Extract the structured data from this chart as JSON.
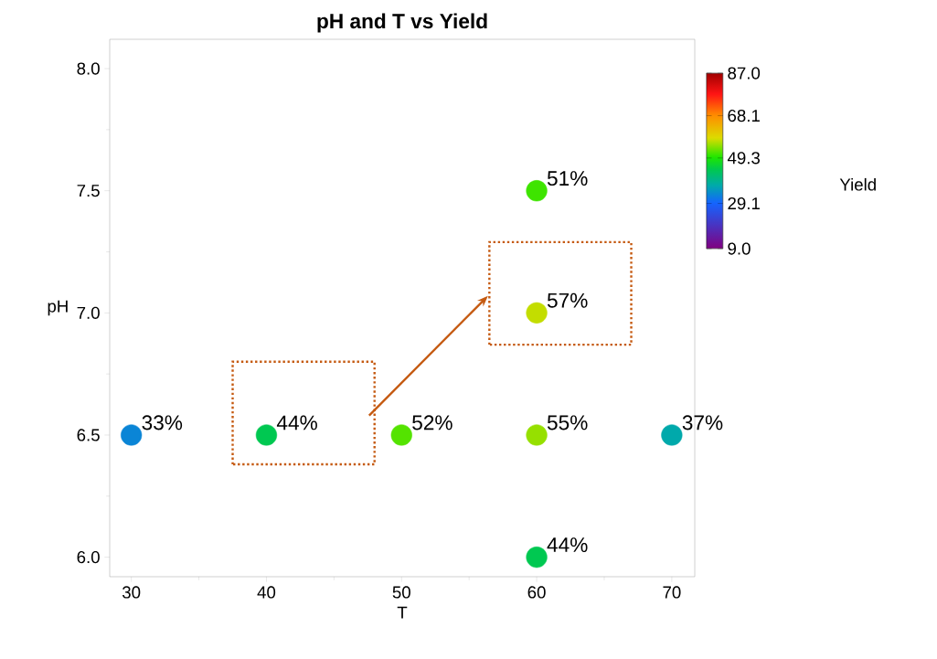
{
  "chart_data": {
    "type": "scatter",
    "title": "pH and T vs Yield",
    "xlabel": "T",
    "ylabel": "pH",
    "clabel": "Yield",
    "x": [
      30,
      40,
      50,
      60,
      70,
      60,
      60,
      60
    ],
    "values": [
      6.5,
      6.5,
      6.5,
      6.5,
      6.5,
      7.5,
      7.0,
      6.0
    ],
    "cvalues": [
      33,
      44,
      52,
      55,
      37,
      51,
      57,
      44
    ],
    "annotations": [
      {
        "text": "33%",
        "x": 30,
        "y": 6.5
      },
      {
        "text": "44%",
        "x": 40,
        "y": 6.5
      },
      {
        "text": "52%",
        "x": 50,
        "y": 6.5
      },
      {
        "text": "55%",
        "x": 60,
        "y": 6.5
      },
      {
        "text": "37%",
        "x": 70,
        "y": 6.5
      },
      {
        "text": "51%",
        "x": 60,
        "y": 7.5
      },
      {
        "text": "57%",
        "x": 60,
        "y": 7.0
      },
      {
        "text": "44%",
        "x": 60,
        "y": 6.0
      }
    ],
    "xlim": [
      28.4,
      71.7
    ],
    "ylim": [
      5.92,
      8.12
    ],
    "xticks": [
      30,
      40,
      50,
      60,
      70
    ],
    "yticks": [
      {
        "value": 6,
        "label": "6.0"
      },
      {
        "value": 6.5,
        "label": "6.5"
      },
      {
        "value": 7,
        "label": "7.0"
      },
      {
        "value": 7.5,
        "label": "7.5"
      },
      {
        "value": 8,
        "label": "8.0"
      }
    ],
    "clim": [
      9,
      87
    ],
    "cticks": [
      {
        "value": 9,
        "label": "9.0"
      },
      {
        "value": 29.1,
        "label": "29.1"
      },
      {
        "value": 49.3,
        "label": "49.3"
      },
      {
        "value": 68.1,
        "label": "68.1"
      },
      {
        "value": 87,
        "label": "87.0"
      }
    ],
    "marker": "circle",
    "grid": false
  }
}
